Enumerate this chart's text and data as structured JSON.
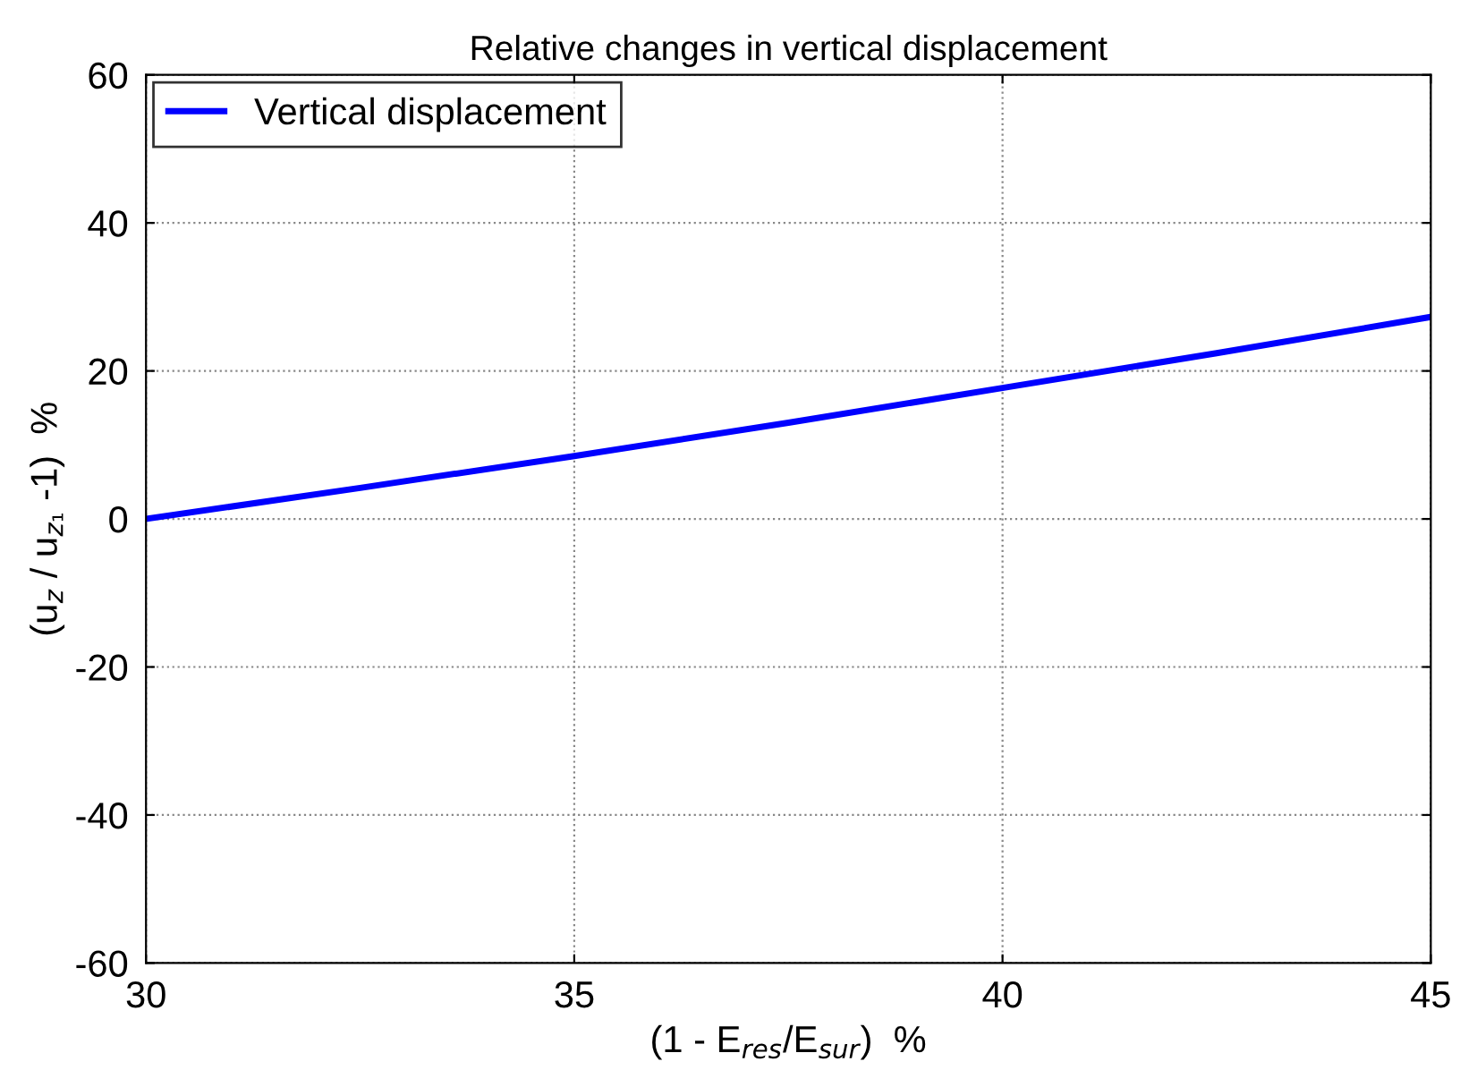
{
  "chart_data": {
    "type": "line",
    "title": "Relative changes in vertical displacement",
    "xlabel": "(1 - E$_{res}$/E$_{sur}$)  %",
    "ylabel": "(u$_{z}$ / u$_{z₁}$ -1)  %",
    "x": [
      30,
      32.5,
      35,
      37.5,
      40,
      42.5,
      45
    ],
    "series": [
      {
        "name": "Vertical displacement",
        "color": "#0000ff",
        "values": [
          0,
          4.2,
          8.5,
          13,
          17.7,
          22.4,
          27.3
        ]
      }
    ],
    "xlim": [
      30,
      45
    ],
    "ylim": [
      -60,
      60
    ],
    "xticks": [
      30,
      35,
      40,
      45
    ],
    "yticks": [
      -60,
      -40,
      -20,
      0,
      20,
      40,
      60
    ],
    "grid": true,
    "legend": "top left",
    "line_style": "solid",
    "marker": "none"
  }
}
